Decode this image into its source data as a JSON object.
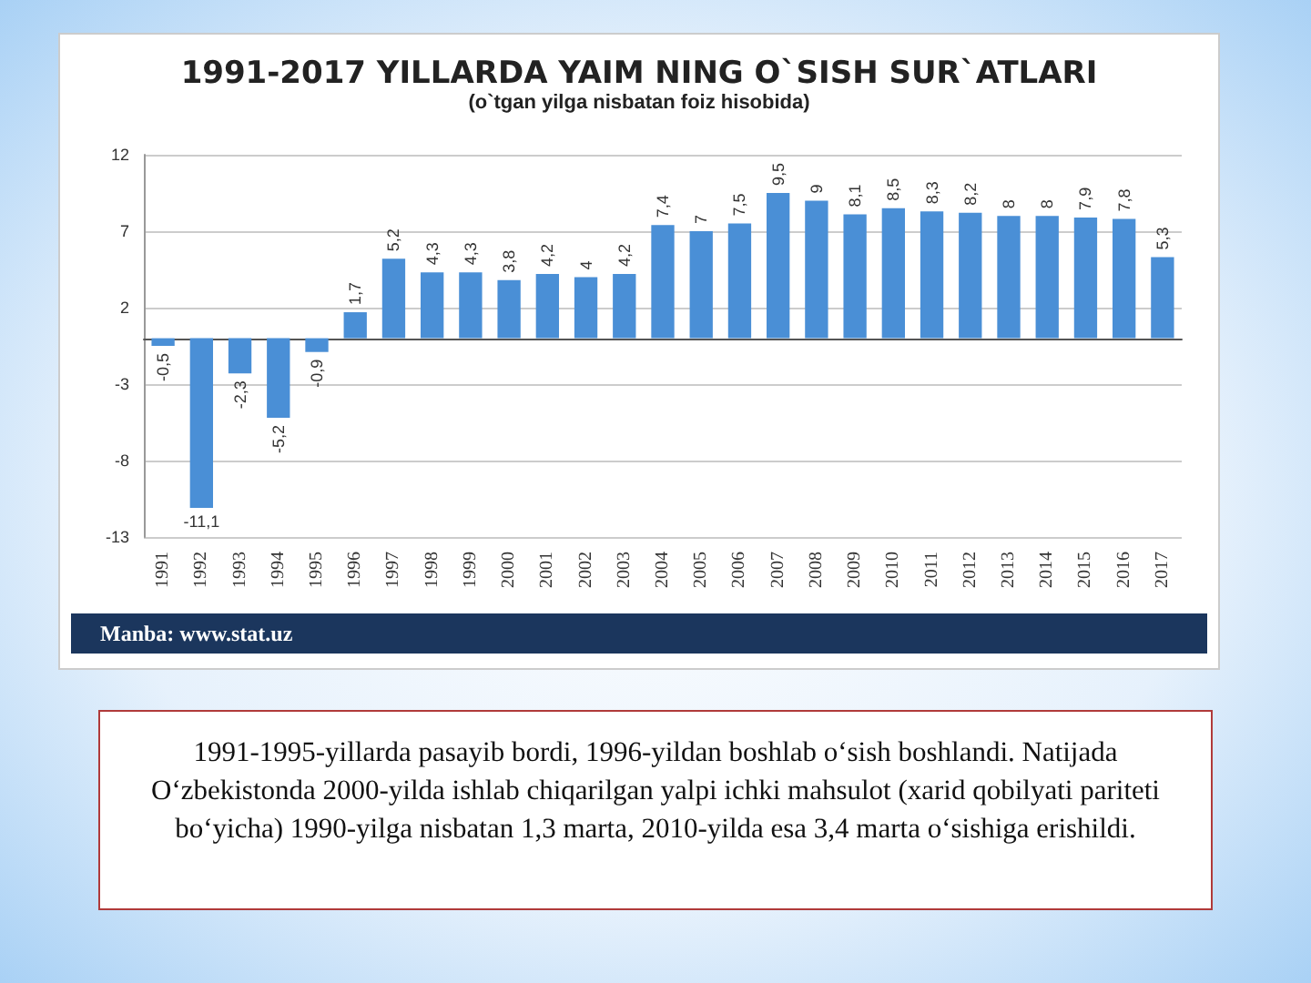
{
  "chart_data": {
    "type": "bar",
    "title": "1991-2017 YILLARDA YAIM NING O`SISH SUR`ATLARI",
    "subtitle": "(o`tgan yilga nisbatan foiz hisobida)",
    "categories": [
      "1991",
      "1992",
      "1993",
      "1994",
      "1995",
      "1996",
      "1997",
      "1998",
      "1999",
      "2000",
      "2001",
      "2002",
      "2003",
      "2004",
      "2005",
      "2006",
      "2007",
      "2008",
      "2009",
      "2010",
      "2011",
      "2012",
      "2013",
      "2014",
      "2015",
      "2016",
      "2017"
    ],
    "values": [
      -0.5,
      -11.1,
      -2.3,
      -5.2,
      -0.9,
      1.7,
      5.2,
      4.3,
      4.3,
      3.8,
      4.2,
      4,
      4.2,
      7.4,
      7,
      7.5,
      9.5,
      9,
      8.1,
      8.5,
      8.3,
      8.2,
      8,
      8,
      7.9,
      7.8,
      5.3
    ],
    "value_labels": [
      "-0,5",
      "-11,1",
      "-2,3",
      "-5,2",
      "-0,9",
      "1,7",
      "5,2",
      "4,3",
      "4,3",
      "3,8",
      "4,2",
      "4",
      "4,2",
      "7,4",
      "7",
      "7,5",
      "9,5",
      "9",
      "8,1",
      "8,5",
      "8,3",
      "8,2",
      "8",
      "8",
      "7,9",
      "7,8",
      "5,3"
    ],
    "color": "#4a8fd6",
    "ylim": [
      -13,
      12
    ],
    "yticks": [
      -13,
      -8,
      -3,
      2,
      7,
      12
    ],
    "grid": "y",
    "annotations": [
      "Manba: www.stat.uz",
      "1991-1995-yillarda pasayib bordi, 1996-yildan boshlab o‘sish boshlandi. Natijada O‘zbekistonda 2000-yilda ishlab chiqarilgan yalpi ichki mahsulot (xarid qobilyati pariteti bo‘yicha) 1990-yilga nisbatan 1,3 marta, 2010-yilda esa 3,4 marta o‘sishiga erishildi."
    ]
  }
}
